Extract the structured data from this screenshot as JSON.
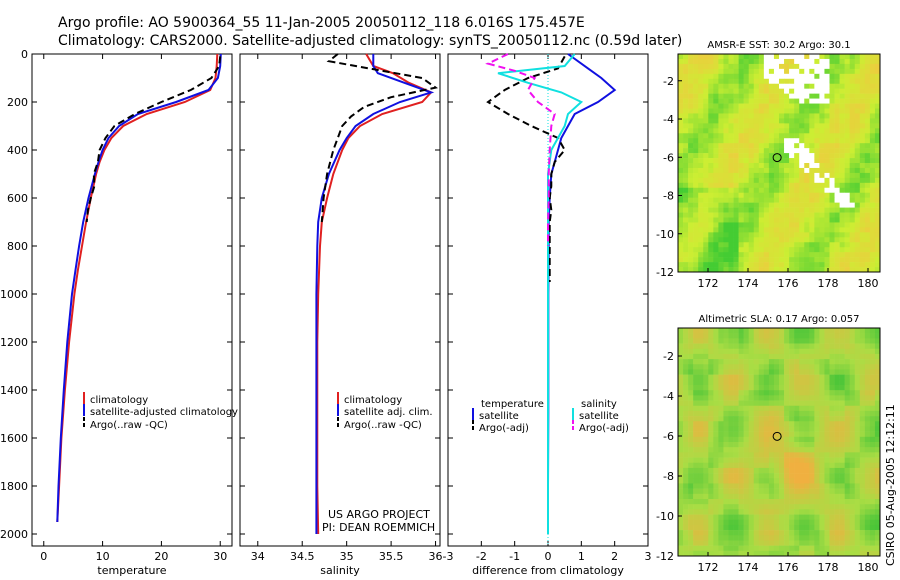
{
  "header": {
    "line1": "Argo profile: AO 5900364_55 11-Jan-2005 20050112_118 6.016S 175.457E",
    "line2": "Climatology: CARS2000. Satellite-adjusted climatology: synTS_20050112.nc (0.59d later)"
  },
  "credit": "CSIRO 05-Aug-2005 12:12:11",
  "project": {
    "line1": "US ARGO PROJECT",
    "line2": "PI: DEAN ROEMMICH"
  },
  "colors": {
    "red": "#e02020",
    "blue": "#1010e0",
    "black": "#000000",
    "cyan": "#10e0e0",
    "magenta": "#f010f0"
  },
  "chart_data": [
    {
      "id": "temperature",
      "type": "line",
      "xlabel": "temperature",
      "ylabel": "",
      "xlim": [
        -2,
        32
      ],
      "ylim": [
        2050,
        0
      ],
      "xticks": [
        "0",
        "10",
        "20",
        "30"
      ],
      "xtick_values": [
        0,
        10,
        20,
        30
      ],
      "yticks": [
        "0",
        "200",
        "400",
        "600",
        "800",
        "1000",
        "1200",
        "1400",
        "1600",
        "1800",
        "2000"
      ],
      "ytick_values": [
        0,
        200,
        400,
        600,
        800,
        1000,
        1200,
        1400,
        1600,
        1800,
        2000
      ],
      "legend": {
        "placement": "lower-right",
        "entries": [
          "climatology",
          "satellite-adjusted climatology",
          "Argo(..raw -QC)"
        ]
      },
      "series": [
        {
          "name": "climatology",
          "color": "#e02020",
          "dash": false,
          "y": [
            0,
            50,
            100,
            150,
            200,
            250,
            300,
            350,
            400,
            450,
            500,
            600,
            700,
            800,
            900,
            1000,
            1200,
            1400,
            1600,
            1800,
            1950
          ],
          "x": [
            29.5,
            29.4,
            29.2,
            28.3,
            24.0,
            17.5,
            13.5,
            11.5,
            10.3,
            9.5,
            8.9,
            8.0,
            7.2,
            6.5,
            5.8,
            5.2,
            4.3,
            3.6,
            3.0,
            2.6,
            2.3
          ]
        },
        {
          "name": "satellite-adjusted climatology",
          "color": "#1010e0",
          "dash": false,
          "y": [
            0,
            50,
            100,
            150,
            200,
            250,
            300,
            350,
            400,
            450,
            500,
            600,
            700,
            800,
            900,
            1000,
            1200,
            1400,
            1600,
            1800,
            1950
          ],
          "x": [
            30.1,
            30.0,
            29.6,
            28.0,
            22.5,
            16.0,
            12.8,
            11.0,
            10.0,
            9.3,
            8.7,
            7.6,
            6.7,
            6.0,
            5.4,
            4.8,
            4.0,
            3.4,
            2.9,
            2.5,
            2.3
          ]
        },
        {
          "name": "Argo(..raw -QC)",
          "color": "#000000",
          "dash": true,
          "y": [
            10,
            50,
            100,
            150,
            200,
            250,
            300,
            350,
            400,
            450,
            500,
            550,
            600,
            650,
            700
          ],
          "x": [
            30.0,
            29.8,
            28.5,
            25.0,
            20.0,
            15.5,
            12.0,
            10.5,
            9.5,
            9.2,
            8.5,
            8.6,
            8.0,
            7.5,
            7.3
          ]
        }
      ]
    },
    {
      "id": "salinity",
      "type": "line",
      "xlabel": "salinity",
      "ylabel": "",
      "xlim": [
        33.8,
        36.05
      ],
      "ylim": [
        2050,
        0
      ],
      "xticks": [
        "34",
        "34.5",
        "35",
        "35.5",
        "36"
      ],
      "xtick_values": [
        34,
        34.5,
        35,
        35.5,
        36
      ],
      "yticks": [],
      "ytick_values": [],
      "legend": {
        "placement": "lower-right",
        "entries": [
          "climatology",
          "satellite adj. clim.",
          "Argo(..raw -QC)"
        ]
      },
      "series": [
        {
          "name": "climatology",
          "color": "#e02020",
          "dash": false,
          "y": [
            0,
            50,
            80,
            120,
            160,
            200,
            250,
            300,
            350,
            400,
            500,
            600,
            700,
            800,
            1000,
            1200,
            1400,
            1600,
            1800,
            2000
          ],
          "x": [
            35.22,
            35.3,
            35.52,
            35.7,
            35.95,
            35.85,
            35.4,
            35.15,
            35.02,
            34.95,
            34.85,
            34.78,
            34.72,
            34.7,
            34.68,
            34.67,
            34.67,
            34.67,
            34.67,
            34.68
          ]
        },
        {
          "name": "satellite adj. clim.",
          "color": "#1010e0",
          "dash": false,
          "y": [
            0,
            50,
            80,
            120,
            160,
            200,
            250,
            300,
            350,
            400,
            500,
            600,
            700,
            800,
            1000,
            1200,
            1400,
            1600,
            1800,
            2000
          ],
          "x": [
            35.3,
            35.3,
            35.35,
            35.65,
            35.95,
            35.6,
            35.3,
            35.1,
            35.0,
            34.92,
            34.8,
            34.72,
            34.68,
            34.67,
            34.66,
            34.66,
            34.66,
            34.66,
            34.66,
            34.66
          ]
        },
        {
          "name": "Argo(..raw -QC)",
          "color": "#000000",
          "dash": true,
          "y": [
            0,
            30,
            60,
            100,
            140,
            180,
            220,
            260,
            300,
            350,
            400,
            500,
            600,
            700
          ],
          "x": [
            34.9,
            34.8,
            35.25,
            35.85,
            36.0,
            35.5,
            35.2,
            35.05,
            34.95,
            34.9,
            34.85,
            34.78,
            34.74,
            34.72
          ]
        }
      ]
    },
    {
      "id": "difference",
      "type": "line",
      "xlabel": "difference from climatology",
      "ylabel": "",
      "xlim": [
        -3,
        3
      ],
      "ylim": [
        2050,
        0
      ],
      "xticks": [
        "-3",
        "-2",
        "-1",
        "0",
        "1",
        "2",
        "3"
      ],
      "xtick_values": [
        -3,
        -2,
        -1,
        0,
        1,
        2,
        3
      ],
      "yticks": [],
      "ytick_values": [],
      "legend": {
        "placement": "lower-center",
        "entries": [
          "temperature",
          "satellite",
          "Argo(-adj)",
          "salinity",
          "satellite",
          "Argo(-adj)"
        ]
      },
      "series": [
        {
          "name": "temperature satellite",
          "color": "#1010e0",
          "dash": false,
          "y": [
            0,
            60,
            100,
            150,
            200,
            250,
            300,
            350,
            400,
            450,
            500,
            600,
            700,
            800,
            1000,
            1200,
            1500,
            1800,
            2000
          ],
          "x": [
            0.6,
            1.2,
            1.6,
            2.0,
            1.5,
            0.8,
            0.6,
            0.4,
            0.3,
            0.2,
            0.1,
            0.05,
            0.02,
            0.02,
            0.01,
            0.01,
            0.01,
            0.0,
            0.0
          ]
        },
        {
          "name": "temperature Argo(-adj)",
          "color": "#000000",
          "dash": true,
          "y": [
            10,
            60,
            100,
            150,
            200,
            250,
            300,
            350,
            400,
            450,
            500,
            550,
            600,
            650,
            700,
            800,
            950
          ],
          "x": [
            0.5,
            0.3,
            -0.6,
            -1.3,
            -1.8,
            -1.2,
            -0.5,
            0.3,
            0.5,
            0.2,
            0.1,
            0.1,
            0.05,
            0.1,
            0.05,
            0.05,
            0.05
          ]
        },
        {
          "name": "salinity satellite",
          "color": "#10e0e0",
          "dash": false,
          "y": [
            0,
            50,
            80,
            120,
            160,
            200,
            250,
            300,
            400,
            500,
            600,
            800,
            1000,
            1200,
            1500,
            2000
          ],
          "x": [
            0.8,
            0.5,
            -1.5,
            -0.6,
            0.4,
            1.0,
            0.6,
            0.5,
            0.1,
            0.0,
            0.0,
            0.0,
            0.0,
            0.0,
            0.0,
            0.0
          ]
        },
        {
          "name": "salinity Argo(-adj)",
          "color": "#f010f0",
          "dash": true,
          "y": [
            0,
            40,
            70,
            100,
            150,
            200,
            250,
            300,
            400,
            500,
            600,
            700,
            800
          ],
          "x": [
            -1.2,
            -1.8,
            -1.0,
            -0.4,
            -0.6,
            -0.3,
            0.2,
            0.1,
            0.05,
            0.02,
            0.02,
            0.0,
            0.0
          ]
        }
      ]
    },
    {
      "id": "sst_map",
      "type": "heatmap",
      "title": "AMSR-E SST: 30.2 Argo: 30.1",
      "xlim": [
        170.5,
        180.6
      ],
      "ylim": [
        -12,
        -0.6
      ],
      "xticks": [
        "172",
        "174",
        "176",
        "178",
        "180"
      ],
      "xtick_values": [
        172,
        174,
        176,
        178,
        180
      ],
      "yticks": [
        "-2",
        "-4",
        "-6",
        "-8",
        "-10",
        "-12"
      ],
      "ytick_values": [
        -2,
        -4,
        -6,
        -8,
        -10,
        -12
      ],
      "marker": {
        "lon": 175.457,
        "lat": -6.016
      },
      "color_low": "#44cc33",
      "color_mid": "#ccee33",
      "color_high": "#f3c640",
      "missing_color": "#ffffff"
    },
    {
      "id": "sla_map",
      "type": "heatmap",
      "title": "Altimetric SLA: 0.17 Argo: 0.057",
      "xlim": [
        170.5,
        180.6
      ],
      "ylim": [
        -12,
        -0.6
      ],
      "xticks": [
        "172",
        "174",
        "176",
        "178",
        "180"
      ],
      "xtick_values": [
        172,
        174,
        176,
        178,
        180
      ],
      "yticks": [
        "-2",
        "-4",
        "-6",
        "-8",
        "-10",
        "-12"
      ],
      "ytick_values": [
        -2,
        -4,
        -6,
        -8,
        -10,
        -12
      ],
      "marker": {
        "lon": 175.457,
        "lat": -6.016
      },
      "color_low": "#22bb33",
      "color_mid": "#aadd44",
      "color_high": "#f0b040"
    }
  ]
}
